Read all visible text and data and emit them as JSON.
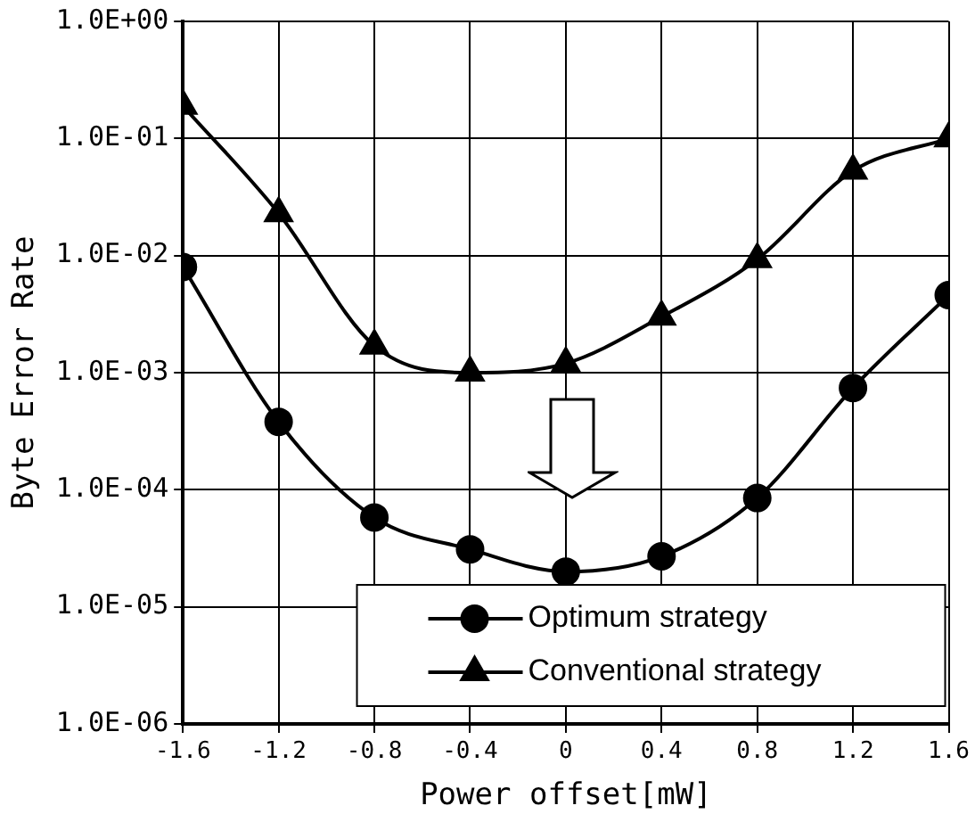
{
  "chart_data": {
    "type": "line",
    "xlabel": "Power offset[mW]",
    "ylabel": "Byte Error Rate",
    "x": [
      -1.6,
      -1.2,
      -0.8,
      -0.4,
      0,
      0.4,
      0.8,
      1.2,
      1.6
    ],
    "series": [
      {
        "name": "Optimum strategy",
        "color": "#000000",
        "marker": "circle",
        "values": [
          0.008,
          0.00038,
          5.8e-05,
          3.1e-05,
          2e-05,
          2.7e-05,
          8.5e-05,
          0.00074,
          0.0046
        ]
      },
      {
        "name": "Conventional strategy",
        "color": "#000000",
        "marker": "triangle",
        "values": [
          0.19,
          0.023,
          0.0017,
          0.001,
          0.0012,
          0.003,
          0.0093,
          0.053,
          0.1
        ]
      }
    ],
    "log": "y",
    "xlim": [
      -1.6,
      1.6
    ],
    "xticks": [
      -1.6,
      -1.2,
      -0.8,
      -0.4,
      0,
      0.4,
      0.8,
      1.2,
      1.6
    ],
    "ylim": [
      1e-06,
      1
    ],
    "yticks": [
      {
        "value": 1,
        "label": "1.0E+00"
      },
      {
        "value": 0.1,
        "label": "1.0E-01"
      },
      {
        "value": 0.01,
        "label": "1.0E-02"
      },
      {
        "value": 0.001,
        "label": "1.0E-03"
      },
      {
        "value": 0.0001,
        "label": "1.0E-04"
      },
      {
        "value": 1e-05,
        "label": "1.0E-05"
      },
      {
        "value": 1e-06,
        "label": "1.0E-06"
      }
    ],
    "grid": true,
    "legend": "bottom right",
    "line_style": "solid"
  }
}
